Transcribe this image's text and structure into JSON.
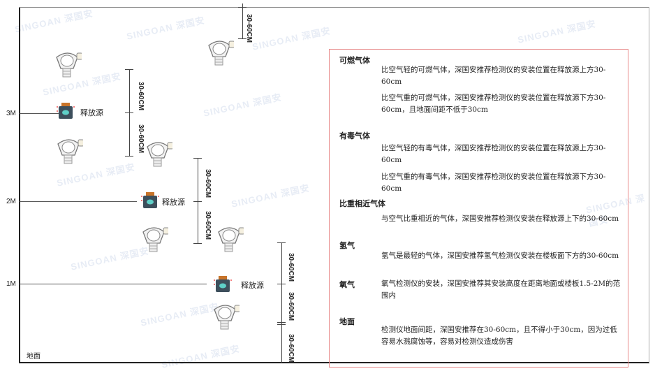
{
  "watermark": "SINGOAN 深国安",
  "levels": {
    "m3": "3M",
    "m2": "2M",
    "m1": "1M",
    "ground": "地面"
  },
  "dimension_label": "30-60CM",
  "source_label": "释放源",
  "panel": {
    "sections": [
      {
        "title": "可燃气体",
        "paragraphs": [
          "比空气轻的可燃气体，深国安推荐检测仪的安装位置在释放源上方30-60cm",
          "比空气重的可燃气体，深国安推荐检测仪的安装位置在释放源下方30-60cm，且地面间距不低于30cm"
        ]
      },
      {
        "title": "有毒气体",
        "paragraphs": [
          "比空气轻的有毒气体，深国安推荐检测仪的安装位置在释放源上方30-60cm",
          "比空气重的有毒气体，深国安推荐检测仪的安装位置在释放源下方30-60cm"
        ]
      },
      {
        "title": "比重相近气体",
        "paragraphs": [
          "与空气比重相近的气体，深国安推荐检测仪安装在释放源上下的30-60cm"
        ]
      },
      {
        "title": "氢气",
        "paragraphs": [
          "氢气是最轻的气体，深国安推荐氢气检测仪安装在楼板面下方的30-60cm"
        ]
      },
      {
        "title": "氧气",
        "paragraphs": [
          "氧气检测仪的安装，深国安推荐其安装高度在距离地面或楼板1.5-2M的范围内"
        ]
      },
      {
        "title": "地面",
        "paragraphs": [
          "检测仪地面间距，深国安推荐在30-60cm，且不得小于30cm，因为过低容易水溅腐蚀等，容易对检测仪造成伤害"
        ]
      }
    ]
  },
  "colors": {
    "panel_border": "#e88a8a",
    "source_body": "#3d4f5c",
    "source_cap": "#c8742a",
    "source_face": "#5fd0c8"
  }
}
